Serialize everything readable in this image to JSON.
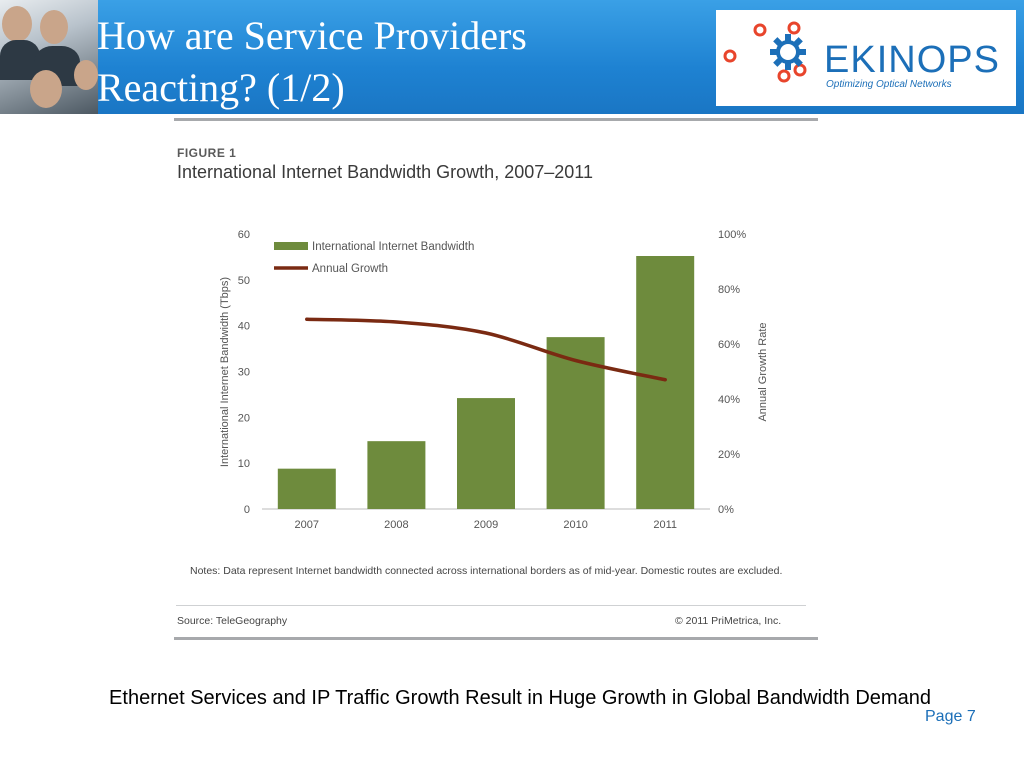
{
  "slide": {
    "title_line1": "How are Service Providers",
    "title_line2": "Reacting? (1/2)",
    "caption": "Ethernet Services and IP Traffic Growth Result in Huge Growth in Global Bandwidth Demand",
    "page": "Page 7"
  },
  "logo": {
    "name": "EKINOPS",
    "tagline": "Optimizing Optical Networks",
    "brand_color": "#1c6fb8",
    "dot_color": "#e8452c"
  },
  "figure": {
    "label": "FIGURE 1",
    "title": "International Internet Bandwidth Growth, 2007–2011",
    "notes": "Notes: Data represent Internet bandwidth connected across international borders as of mid-year. Domestic routes are excluded.",
    "source": "Source: TeleGeography",
    "copyright": "© 2011 PriMetrica, Inc."
  },
  "chart_data": {
    "type": "bar",
    "categories": [
      "2007",
      "2008",
      "2009",
      "2010",
      "2011"
    ],
    "series": [
      {
        "name": "International Internet Bandwidth",
        "type": "bar",
        "axis": "left",
        "values": [
          8.8,
          14.8,
          24.2,
          37.5,
          55.2
        ],
        "color": "#6e8b3d"
      },
      {
        "name": "Annual Growth",
        "type": "line",
        "axis": "right",
        "values": [
          69,
          68,
          64,
          54,
          47
        ],
        "color": "#7a2a12"
      }
    ],
    "ylabel": "International Internet Bandwidth (Tbps)",
    "ylim": [
      0,
      60
    ],
    "yticks": [
      "0",
      "10",
      "20",
      "30",
      "40",
      "50",
      "60"
    ],
    "y2label": "Annual Growth Rate",
    "y2lim": [
      0,
      100
    ],
    "y2ticks": [
      "0%",
      "20%",
      "40%",
      "60%",
      "80%",
      "100%"
    ],
    "legend": "top-left",
    "grid": false
  }
}
